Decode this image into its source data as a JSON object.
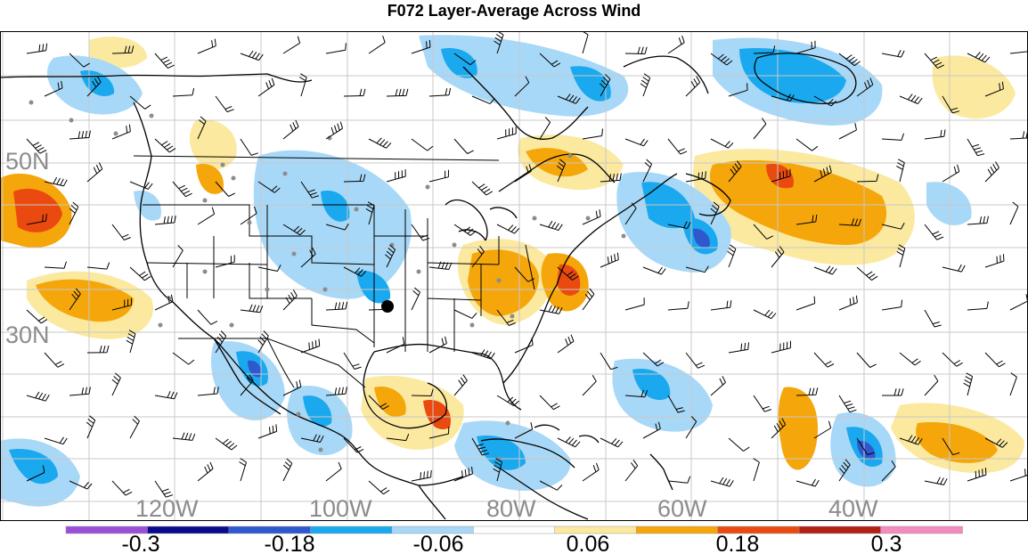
{
  "title": "F072 Layer-Average Across Wind",
  "map": {
    "lat_labels": [
      "50N",
      "30N"
    ],
    "lon_labels": [
      "120W",
      "100W",
      "80W",
      "60W",
      "40W"
    ],
    "label_color": "#8c8c8c",
    "grid_color": "#c8c8c8",
    "coastline_color": "#000000"
  },
  "colorbar": {
    "colors": [
      "#9b4fd8",
      "#0a0a8c",
      "#2f58cf",
      "#1aa9ee",
      "#a8d8f7",
      "#ffffff",
      "#fbe9a0",
      "#f5a60a",
      "#ea4a10",
      "#b11f16",
      "#f28cbf"
    ],
    "labels": [
      "-0.3",
      "-0.18",
      "-0.06",
      "0.06",
      "0.18",
      "0.3"
    ]
  }
}
